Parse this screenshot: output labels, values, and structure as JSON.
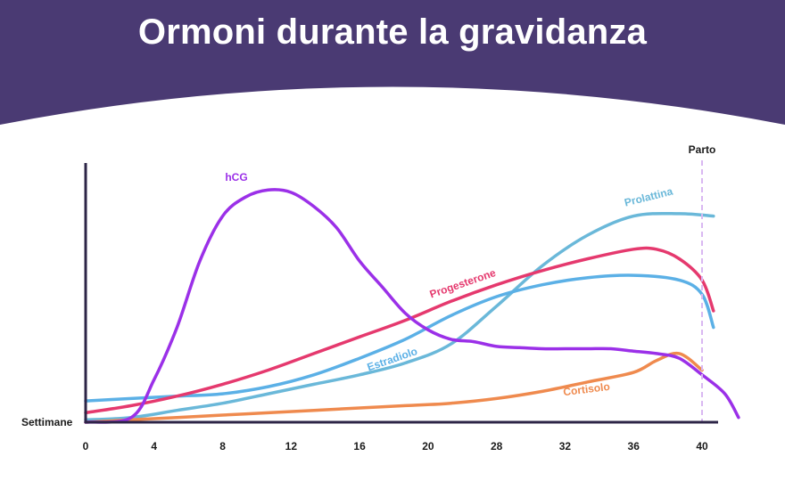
{
  "title": "Ormoni durante la gravidanza",
  "colors": {
    "header": "#4a3a73",
    "axis": "#2d2547",
    "delivery_line": "#d9b8f2"
  },
  "chart_data": {
    "type": "line",
    "title": "Ormoni durante la gravidanza",
    "xlabel": "Settimane",
    "ylabel": "",
    "x_ticks": [
      "0",
      "4",
      "8",
      "12",
      "16",
      "20",
      "28",
      "32",
      "36",
      "40"
    ],
    "y_range": [
      0,
      100
    ],
    "grid": false,
    "legend": "inline labels",
    "y_axis_values_shown": false,
    "marker": {
      "label": "Parto",
      "x_index": 9
    },
    "series": [
      {
        "name": "hCG",
        "color": "#9b30e8",
        "points": [
          [
            0,
            0
          ],
          [
            2,
            2
          ],
          [
            3,
            18
          ],
          [
            4,
            40
          ],
          [
            5,
            68
          ],
          [
            6,
            87
          ],
          [
            7,
            95
          ],
          [
            8,
            98
          ],
          [
            9,
            97
          ],
          [
            10,
            91
          ],
          [
            11,
            82
          ],
          [
            12,
            68
          ],
          [
            13,
            57
          ],
          [
            14,
            46
          ],
          [
            15,
            39
          ],
          [
            16,
            35
          ],
          [
            17,
            34
          ],
          [
            18,
            32
          ],
          [
            19,
            31.5
          ],
          [
            20,
            31
          ],
          [
            21,
            31
          ],
          [
            22,
            31
          ],
          [
            23,
            31
          ],
          [
            24,
            30
          ],
          [
            25,
            29
          ],
          [
            26,
            27
          ],
          [
            27,
            20
          ],
          [
            28,
            12
          ],
          [
            28.6,
            2
          ]
        ]
      },
      {
        "name": "Progesterone",
        "color": "#e5396e",
        "points": [
          [
            0,
            4
          ],
          [
            2,
            7
          ],
          [
            4,
            11
          ],
          [
            6,
            16
          ],
          [
            8,
            22
          ],
          [
            10,
            29
          ],
          [
            12,
            36
          ],
          [
            14,
            43
          ],
          [
            16,
            51
          ],
          [
            18,
            58
          ],
          [
            20,
            64
          ],
          [
            22,
            69
          ],
          [
            24,
            73
          ],
          [
            25,
            73
          ],
          [
            26,
            69
          ],
          [
            27,
            60
          ],
          [
            27.5,
            47
          ]
        ]
      },
      {
        "name": "Estradiolo",
        "color": "#5bb0e6",
        "points": [
          [
            0,
            9
          ],
          [
            2,
            10
          ],
          [
            4,
            11
          ],
          [
            6,
            12
          ],
          [
            8,
            15
          ],
          [
            10,
            20
          ],
          [
            12,
            27
          ],
          [
            14,
            35
          ],
          [
            16,
            45
          ],
          [
            18,
            53
          ],
          [
            20,
            58
          ],
          [
            22,
            61
          ],
          [
            24,
            62
          ],
          [
            26,
            60
          ],
          [
            27,
            54
          ],
          [
            27.5,
            40
          ]
        ]
      },
      {
        "name": "Prolattina",
        "color": "#6ab8d9",
        "points": [
          [
            0,
            1
          ],
          [
            2,
            2
          ],
          [
            4,
            5
          ],
          [
            6,
            8
          ],
          [
            8,
            12
          ],
          [
            10,
            16
          ],
          [
            12,
            20
          ],
          [
            14,
            25
          ],
          [
            16,
            33
          ],
          [
            18,
            49
          ],
          [
            20,
            66
          ],
          [
            22,
            79
          ],
          [
            24,
            87
          ],
          [
            26,
            88
          ],
          [
            27.5,
            87
          ]
        ]
      },
      {
        "name": "Cortisolo",
        "color": "#ef8a4e",
        "points": [
          [
            0,
            0
          ],
          [
            2,
            1
          ],
          [
            4,
            2
          ],
          [
            6,
            3
          ],
          [
            8,
            4
          ],
          [
            10,
            5
          ],
          [
            12,
            6
          ],
          [
            14,
            7
          ],
          [
            16,
            8
          ],
          [
            18,
            10
          ],
          [
            20,
            13
          ],
          [
            22,
            17
          ],
          [
            24,
            21
          ],
          [
            25,
            26
          ],
          [
            26,
            29
          ],
          [
            27,
            22
          ]
        ]
      }
    ],
    "annotations": [
      {
        "text": "hCG",
        "series": "hCG"
      },
      {
        "text": "Progesterone",
        "series": "Progesterone"
      },
      {
        "text": "Estradiolo",
        "series": "Estradiolo"
      },
      {
        "text": "Prolattina",
        "series": "Prolattina"
      },
      {
        "text": "Cortisolo",
        "series": "Cortisolo"
      },
      {
        "text": "Parto",
        "series": null
      }
    ]
  }
}
